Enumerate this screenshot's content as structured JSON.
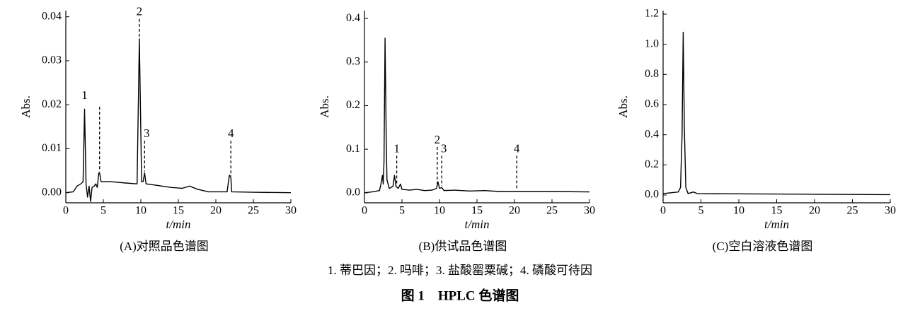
{
  "chart_data": [
    {
      "type": "line",
      "title": "(A)对照品色谱图",
      "x_label": "t/min",
      "y_label": "Abs.",
      "color": "#000000",
      "x": [
        0,
        1,
        1.5,
        2,
        2.3,
        2.5,
        2.7,
        2.9,
        3.1,
        3.3,
        3.5,
        3.8,
        4.0,
        4.2,
        4.4,
        4.5,
        4.7,
        6,
        8,
        9.5,
        9.8,
        10.1,
        10.3,
        10.5,
        10.7,
        12,
        14,
        15.5,
        16.5,
        17.5,
        19,
        21.5,
        21.8,
        22,
        22.1,
        25,
        30
      ],
      "values": [
        0,
        0.0002,
        0.0015,
        0.002,
        0.0025,
        0.019,
        0.002,
        -0.001,
        0.0015,
        -0.002,
        0.0012,
        0.0015,
        0.002,
        0.0012,
        0.0045,
        0.0045,
        0.0025,
        0.0025,
        0.0022,
        0.002,
        0.035,
        0.0025,
        0.0025,
        0.0045,
        0.002,
        0.0017,
        0.0012,
        0.001,
        0.0015,
        0.0008,
        0.0002,
        0.0002,
        0.004,
        0.0035,
        0.0002,
        0.0001,
        0
      ],
      "xlim": [
        0,
        30
      ],
      "xticks": [
        0,
        5,
        10,
        15,
        20,
        25,
        30
      ],
      "ylim": [
        -0.0023,
        0.0414
      ],
      "yticks": [
        {
          "value": 0,
          "label": "0.00"
        },
        0.01,
        0.02,
        0.03,
        0.04
      ],
      "annotations": [
        {
          "label": "1",
          "x": 2.5,
          "y": 0.0205,
          "dashed": false
        },
        {
          "x": 4.5,
          "y": 0.0195,
          "dashed": true
        },
        {
          "label": "2",
          "x": 9.8,
          "y": 0.0395,
          "dashed": true
        },
        {
          "label": "3",
          "x": 10.5,
          "y": 0.0118,
          "dashed": true
        },
        {
          "label": "4",
          "x": 22,
          "y": 0.0118,
          "dashed": true
        }
      ]
    },
    {
      "type": "line",
      "title": "(B)供试品色谱图",
      "x_label": "t/min",
      "y_label": "Abs.",
      "color": "#000000",
      "x": [
        0,
        1,
        2,
        2.2,
        2.4,
        2.5,
        2.6,
        2.75,
        2.9,
        3.0,
        3.3,
        3.8,
        4.0,
        4.2,
        4.5,
        4.8,
        5.0,
        6,
        7,
        8,
        9,
        9.6,
        9.8,
        10.0,
        10.3,
        10.6,
        12,
        14,
        16,
        18,
        20,
        22,
        25,
        30
      ],
      "values": [
        0,
        0.002,
        0.005,
        0.02,
        0.04,
        0.02,
        0.07,
        0.355,
        0.13,
        0.03,
        0.01,
        0.015,
        0.04,
        0.015,
        0.01,
        0.02,
        0.008,
        0.006,
        0.008,
        0.005,
        0.006,
        0.01,
        0.025,
        0.01,
        0.012,
        0.005,
        0.006,
        0.004,
        0.005,
        0.003,
        0.003,
        0.003,
        0.003,
        0.002
      ],
      "xlim": [
        0,
        30
      ],
      "xticks": [
        0,
        5,
        10,
        15,
        20,
        25,
        30
      ],
      "ylim": [
        -0.023,
        0.418
      ],
      "yticks": [
        {
          "value": 0,
          "label": "0.0"
        },
        0.1,
        0.2,
        0.3,
        0.4
      ],
      "annotations": [
        {
          "label": "1",
          "x": 4.3,
          "y": 0.085,
          "dashed": true
        },
        {
          "label": "2",
          "x": 9.7,
          "y": 0.105,
          "dashed": true
        },
        {
          "label": "3",
          "x": 10.3,
          "y": 0.085,
          "dashed": true
        },
        {
          "label": "4",
          "x": 20.3,
          "y": 0.085,
          "dashed": true
        }
      ]
    },
    {
      "type": "line",
      "title": "(C)空白溶液色谱图",
      "x_label": "t/min",
      "y_label": "Abs.",
      "color": "#000000",
      "x": [
        0,
        2,
        2.3,
        2.5,
        2.65,
        2.8,
        3.0,
        3.3,
        4,
        4.5,
        10,
        20,
        30
      ],
      "values": [
        0.01,
        0.02,
        0.05,
        0.4,
        1.08,
        0.45,
        0.05,
        0.01,
        0.02,
        0.01,
        0.008,
        0.005,
        0.003
      ],
      "xlim": [
        0,
        30
      ],
      "xticks": [
        0,
        5,
        10,
        15,
        20,
        25,
        30
      ],
      "ylim": [
        -0.0516,
        1.2234
      ],
      "yticks": [
        {
          "value": 0,
          "label": "0.0"
        },
        0.2,
        0.4,
        0.6,
        0.8,
        {
          "value": 1,
          "label": "1.0"
        },
        1.2
      ],
      "annotations": []
    }
  ],
  "caption": {
    "note": "1. 蒂巴因；2. 吗啡；3. 盐酸罂粟碱；4. 磷酸可待因",
    "title": "图 1　HPLC 色谱图"
  }
}
